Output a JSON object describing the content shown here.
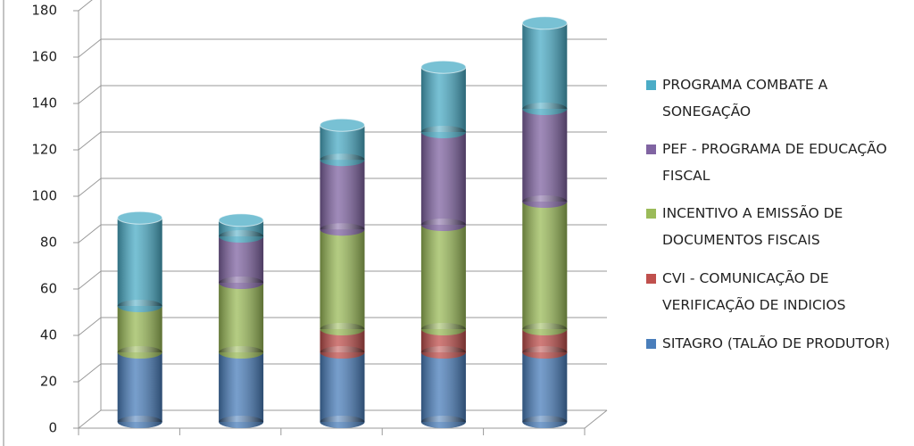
{
  "chart_data": {
    "type": "bar3d-stacked",
    "categories": [
      null,
      null,
      null,
      null,
      null
    ],
    "series": [
      {
        "name": "SITAGRO (TALÃO DE PRODUTOR)",
        "color": "#4a7ebb",
        "values": [
          30,
          30,
          30,
          30,
          30
        ]
      },
      {
        "name": "CVI - COMUNICAÇÃO DE VERIFICAÇÃO DE INDICIOS",
        "color": "#c0504d",
        "values": [
          0,
          0,
          10,
          10,
          10
        ]
      },
      {
        "name": "INCENTIVO A EMISSÃO DE DOCUMENTOS FISCAIS",
        "color": "#9bbb59",
        "values": [
          20,
          30,
          43,
          45,
          55
        ]
      },
      {
        "name": "PEF - PROGRAMA DE EDUCAÇÃO FISCAL",
        "color": "#8064a2",
        "values": [
          0,
          20,
          30,
          40,
          40
        ]
      },
      {
        "name": "PROGRAMA COMBATE A SONEGAÇÃO",
        "color": "#4bacc6",
        "values": [
          38,
          7,
          15,
          28,
          37
        ]
      }
    ],
    "ylim": [
      0,
      180
    ],
    "yticks": [
      0,
      20,
      40,
      60,
      80,
      100,
      120,
      140,
      160,
      180
    ],
    "grid": true
  }
}
